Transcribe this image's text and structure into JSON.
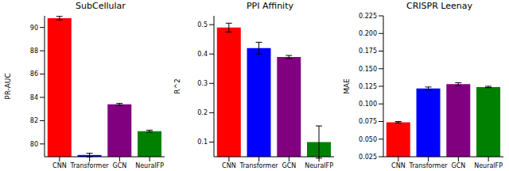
{
  "chart_data": [
    {
      "type": "bar",
      "title": "SubCellular",
      "y_label": "PR-AUC",
      "categories": [
        "CNN",
        "Transformer",
        "GCN",
        "NeuralFP"
      ],
      "values": [
        90.8,
        79.05,
        83.4,
        81.1
      ],
      "errors": [
        0.15,
        0.15,
        0.08,
        0.08
      ],
      "colors": [
        "#ff0000",
        "#0000ff",
        "#800080",
        "#008000"
      ],
      "ylim": [
        78.9,
        91
      ],
      "yticks": [
        80,
        82,
        84,
        86,
        88,
        90
      ],
      "grid": false
    },
    {
      "type": "bar",
      "title": "PPI Affinity",
      "y_label": "R^2",
      "categories": [
        "CNN",
        "Transformer",
        "GCN",
        "NeuralFP"
      ],
      "values": [
        0.49,
        0.42,
        0.39,
        0.1
      ],
      "errors": [
        0.015,
        0.02,
        0.005,
        0.055
      ],
      "colors": [
        "#ff0000",
        "#0000ff",
        "#800080",
        "#008000"
      ],
      "ylim": [
        0.05,
        0.53
      ],
      "yticks": [
        0.1,
        0.2,
        0.3,
        0.4,
        0.5
      ],
      "grid": false
    },
    {
      "type": "bar",
      "title": "CRISPR Leenay",
      "y_label": "MAE",
      "categories": [
        "CNN",
        "Transformer",
        "GCN",
        "NeuralFP"
      ],
      "values": [
        0.074,
        0.122,
        0.128,
        0.124
      ],
      "errors": [
        0.001,
        0.002,
        0.002,
        0.001
      ],
      "colors": [
        "#ff0000",
        "#0000ff",
        "#800080",
        "#008000"
      ],
      "ylim": [
        0.025,
        0.225
      ],
      "yticks": [
        {
          "value": 0.025,
          "label": "0.025"
        },
        {
          "value": 0.05,
          "label": "0.050"
        },
        {
          "value": 0.075,
          "label": "0.075"
        },
        {
          "value": 0.1,
          "label": "0.100"
        },
        {
          "value": 0.125,
          "label": "0.125"
        },
        {
          "value": 0.15,
          "label": "0.150"
        },
        {
          "value": 0.175,
          "label": "0.175"
        },
        {
          "value": 0.2,
          "label": "0.200"
        },
        {
          "value": 0.225,
          "label": "0.225"
        }
      ],
      "grid": false
    }
  ]
}
